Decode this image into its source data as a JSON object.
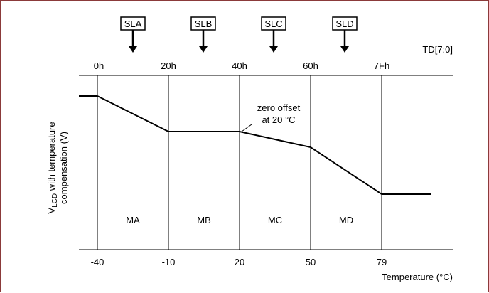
{
  "slope_labels": [
    "SLA",
    "SLB",
    "SLC",
    "SLD"
  ],
  "td_label": "TD[7:0]",
  "td_ticks": [
    "0h",
    "20h",
    "40h",
    "60h",
    "7Fh"
  ],
  "region_labels": [
    "MA",
    "MB",
    "MC",
    "MD"
  ],
  "annotation": {
    "line1": "zero offset",
    "line2": "at 20 °C"
  },
  "y_axis": {
    "prefix": "V",
    "subscript": "LCD",
    "suffix": " with temperature",
    "line2": "compensation (V)"
  },
  "x_axis_title": "Temperature (°C)",
  "x_ticks": [
    "-40",
    "-10",
    "20",
    "50",
    "79"
  ],
  "colors": {
    "border": "#8b3a3a",
    "line": "#000000"
  }
}
